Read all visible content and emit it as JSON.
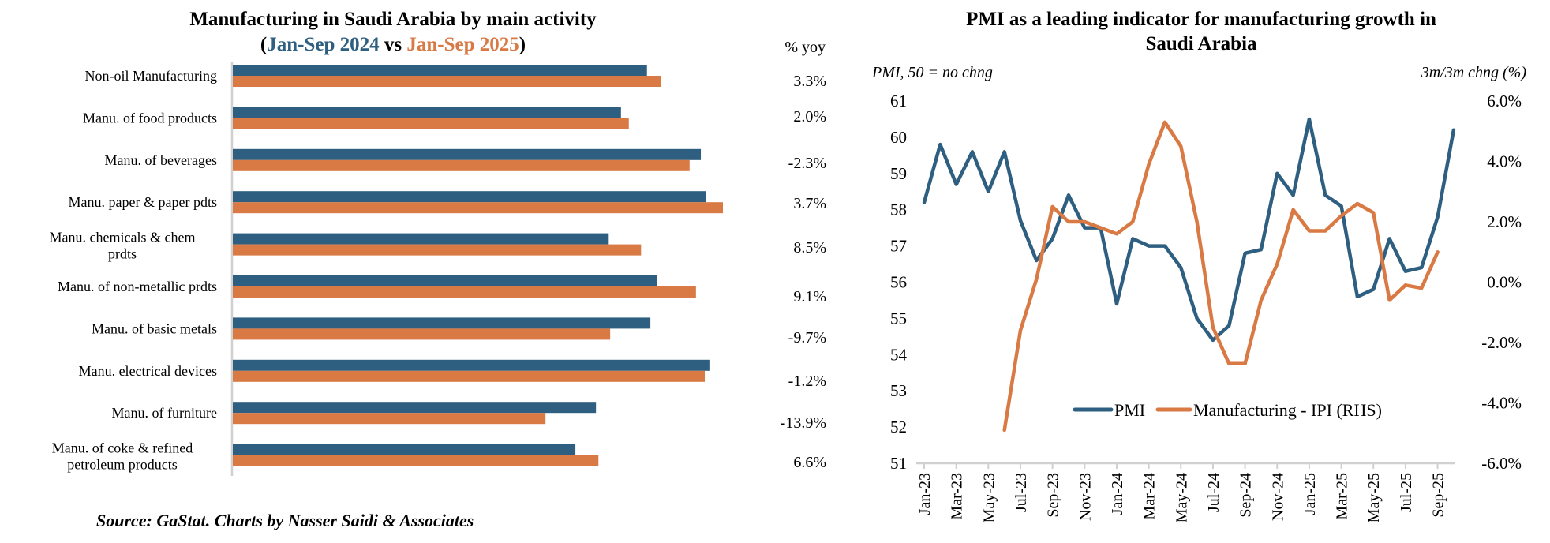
{
  "source": "Source: GaStat. Charts by Nasser Saidi & Associates",
  "colors": {
    "series_2024": "#2E5F80",
    "series_2025": "#D97944",
    "pmi": "#2E5F80",
    "ipi": "#D97944",
    "axis": "#d0d0d0"
  },
  "chart_data": [
    {
      "type": "bar",
      "orientation": "horizontal",
      "title": "Manufacturing in Saudi Arabia by main activity",
      "subtitle": {
        "open": "(",
        "part1": "Jan-Sep 2024",
        "mid": " vs ",
        "part2": "Jan-Sep 2025",
        "close": ")"
      },
      "value_column_header": "% yoy",
      "xlabel": "",
      "ylabel": "",
      "value_units": "relative index (no value axis shown; largest bar = 100)",
      "categories": [
        [
          "Non-oil Manufacturing"
        ],
        [
          "Manu. of food products"
        ],
        [
          "Manu. of beverages"
        ],
        [
          "Manu. paper & paper pdts"
        ],
        [
          "Manu. chemicals & chem",
          "prdts"
        ],
        [
          "Manu. of non-metallic prdts"
        ],
        [
          "Manu. of basic metals"
        ],
        [
          "Manu. electrical devices"
        ],
        [
          "Manu. of furniture"
        ],
        [
          "Manu. of coke & refined",
          "petroleum products"
        ]
      ],
      "series": [
        {
          "name": "Jan-Sep 2024",
          "values": [
            84.5,
            79.2,
            95.5,
            96.5,
            76.7,
            86.6,
            85.2,
            97.4,
            74.1,
            69.9
          ]
        },
        {
          "name": "Jan-Sep 2025",
          "values": [
            87.3,
            80.8,
            93.2,
            100.0,
            83.3,
            94.5,
            77.0,
            96.3,
            63.8,
            74.6
          ]
        }
      ],
      "yoy_labels": [
        "3.3%",
        "2.0%",
        "-2.3%",
        "3.7%",
        "8.5%",
        "9.1%",
        "-9.7%",
        "-1.2%",
        "-13.9%",
        "6.6%"
      ],
      "grid": false,
      "legend": "none (series identified by colored subtitle)"
    },
    {
      "type": "line",
      "title_lines": [
        "PMI as a leading indicator for manufacturing growth in",
        "Saudi Arabia"
      ],
      "left_axis_label": "PMI, 50 = no chng",
      "right_axis_label": "3m/3m chng (%)",
      "x": [
        "Jan-23",
        "Feb-23",
        "Mar-23",
        "Apr-23",
        "May-23",
        "Jun-23",
        "Jul-23",
        "Aug-23",
        "Sep-23",
        "Oct-23",
        "Nov-23",
        "Dec-23",
        "Jan-24",
        "Feb-24",
        "Mar-24",
        "Apr-24",
        "May-24",
        "Jun-24",
        "Jul-24",
        "Aug-24",
        "Sep-24",
        "Oct-24",
        "Nov-24",
        "Dec-24",
        "Jan-25",
        "Feb-25",
        "Mar-25",
        "Apr-25",
        "May-25",
        "Jun-25",
        "Jul-25",
        "Aug-25",
        "Sep-25",
        "Oct-25"
      ],
      "x_tick_labels": [
        "Jan-23",
        "Mar-23",
        "May-23",
        "Jul-23",
        "Sep-23",
        "Nov-23",
        "Jan-24",
        "Mar-24",
        "May-24",
        "Jul-24",
        "Sep-24",
        "Nov-24",
        "Jan-25",
        "Mar-25",
        "May-25",
        "Jul-25",
        "Sep-25"
      ],
      "y_left": {
        "lim": [
          51,
          61
        ],
        "ticks": [
          "61",
          "60",
          "59",
          "58",
          "57",
          "56",
          "55",
          "54",
          "53",
          "52",
          "51"
        ]
      },
      "y_right": {
        "lim": [
          -6,
          6
        ],
        "ticks": [
          "6.0%",
          "4.0%",
          "2.0%",
          "0.0%",
          "-2.0%",
          "-4.0%",
          "-6.0%"
        ]
      },
      "series": [
        {
          "name": "PMI",
          "axis": "left",
          "values": [
            58.2,
            59.8,
            58.7,
            59.6,
            58.5,
            59.6,
            57.7,
            56.6,
            57.2,
            58.4,
            57.5,
            57.5,
            55.4,
            57.2,
            57.0,
            57.0,
            56.4,
            55.0,
            54.4,
            54.8,
            56.8,
            56.9,
            59.0,
            58.4,
            60.5,
            58.4,
            58.1,
            55.6,
            55.8,
            57.2,
            56.3,
            56.4,
            57.8,
            60.2
          ]
        },
        {
          "name": "Manufacturing - IPI (RHS)",
          "axis": "right",
          "units": "%",
          "values": [
            null,
            null,
            null,
            null,
            null,
            -4.9,
            -1.6,
            0.1,
            2.5,
            2.0,
            2.0,
            1.8,
            1.6,
            2.0,
            3.9,
            5.3,
            4.5,
            2.0,
            -1.5,
            -2.7,
            -2.7,
            -0.6,
            0.6,
            2.4,
            1.7,
            1.7,
            2.2,
            2.6,
            2.3,
            -0.6,
            -0.1,
            -0.2,
            1.0,
            null
          ]
        }
      ],
      "grid": false,
      "legend": "inside-bottom-center"
    }
  ]
}
